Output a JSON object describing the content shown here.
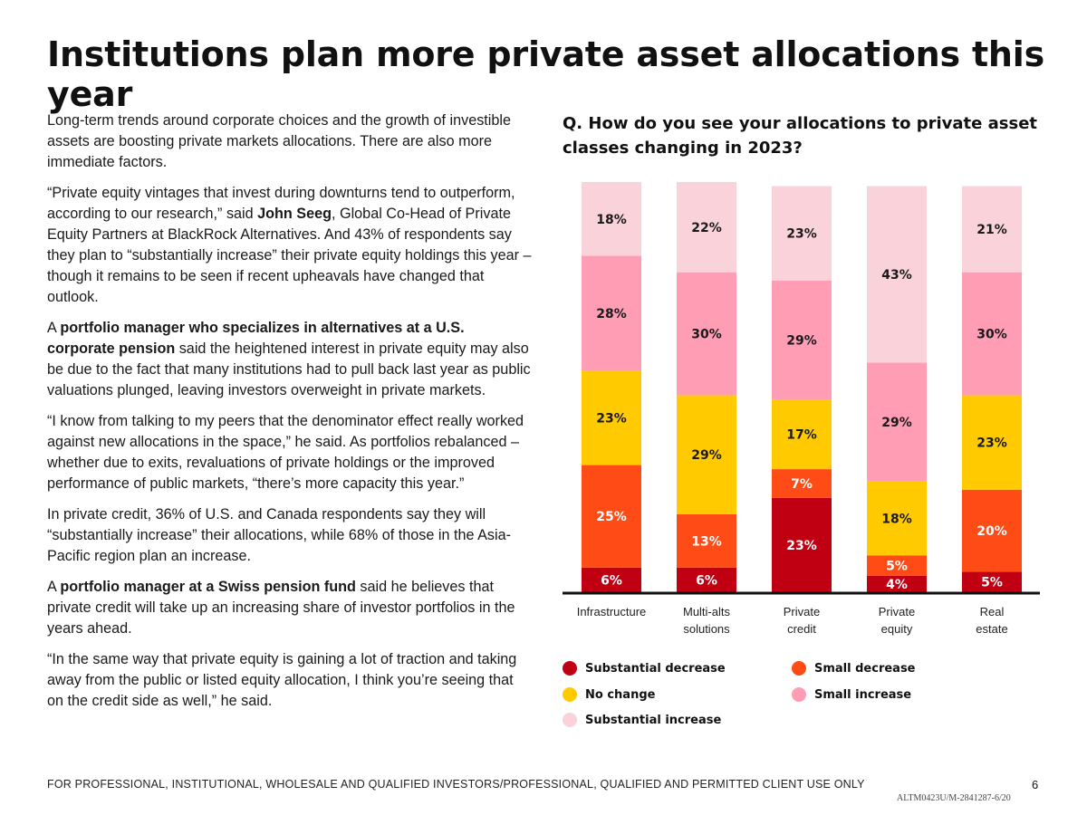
{
  "title": "Institutions plan more private asset allocations this year",
  "body": {
    "p1": "Long-term trends around corporate choices and the growth of investible assets are boosting private markets allocations. There are also more immediate factors.",
    "p2_a": "“Private equity vintages that invest during downturns tend to outperform, according to our research,” said ",
    "p2_b": "John Seeg",
    "p2_c": ", Global Co-Head of Private Equity Partners at BlackRock Alternatives. And 43% of respondents say they plan to “substantially increase” their private equity holdings this year – though it remains to be seen if recent upheavals have changed that outlook.",
    "p3_a": "A ",
    "p3_b": "portfolio manager who specializes in alternatives at a U.S. corporate pension",
    "p3_c": " said the heightened interest in private equity may also be due to the fact that many institutions had to pull back last year as public valuations plunged, leaving investors overweight in private markets.",
    "p4": "“I know from talking to my peers that the denominator effect really worked against new allocations in the space,” he said. As portfolios rebalanced – whether due to exits, revaluations of private holdings or the improved performance of public markets, “there’s more capacity this year.”",
    "p5": "In private credit,  36% of U.S. and Canada respondents say they will “substantially increase” their allocations, while 68% of those in the Asia-Pacific region plan an increase.",
    "p6_a": "A ",
    "p6_b": "portfolio manager at a Swiss pension fund",
    "p6_c": " said he believes that private credit will take up an increasing share of investor portfolios in the years ahead.",
    "p7": "“In the same way that private equity is gaining a lot of traction and taking away from the public or listed equity allocation, I think you’re seeing that on the credit side as well,” he said."
  },
  "chart_data": {
    "type": "bar",
    "stacked": true,
    "title": "Q. How do you see your allocations to private asset classes changing in 2023?",
    "categories": [
      [
        "Infrastructure"
      ],
      [
        "Multi-alts",
        "solutions"
      ],
      [
        "Private",
        "credit"
      ],
      [
        "Private",
        "equity"
      ],
      [
        "Real",
        "estate"
      ]
    ],
    "series": [
      {
        "name": "Substantial decrease",
        "color": "#c00012",
        "values": [
          6,
          6,
          23,
          4,
          5
        ]
      },
      {
        "name": "Small decrease",
        "color": "#ff4c16",
        "values": [
          25,
          13,
          7,
          5,
          20
        ]
      },
      {
        "name": "No change",
        "color": "#ffcb00",
        "values": [
          23,
          29,
          17,
          18,
          23
        ]
      },
      {
        "name": "Small increase",
        "color": "#ff9db5",
        "values": [
          28,
          30,
          29,
          29,
          30
        ]
      },
      {
        "name": "Substantial increase",
        "color": "#fad2da",
        "values": [
          18,
          22,
          23,
          43,
          21
        ]
      }
    ],
    "value_suffix": "%",
    "ylim": [
      0,
      100
    ]
  },
  "footer": {
    "disclaimer": "FOR PROFESSIONAL, INSTITUTIONAL, WHOLESALE AND QUALIFIED INVESTORS/PROFESSIONAL, QUALIFIED AND PERMITTED CLIENT USE ONLY",
    "page": "6",
    "code": "ALTM0423U/M-2841287-6/20"
  }
}
